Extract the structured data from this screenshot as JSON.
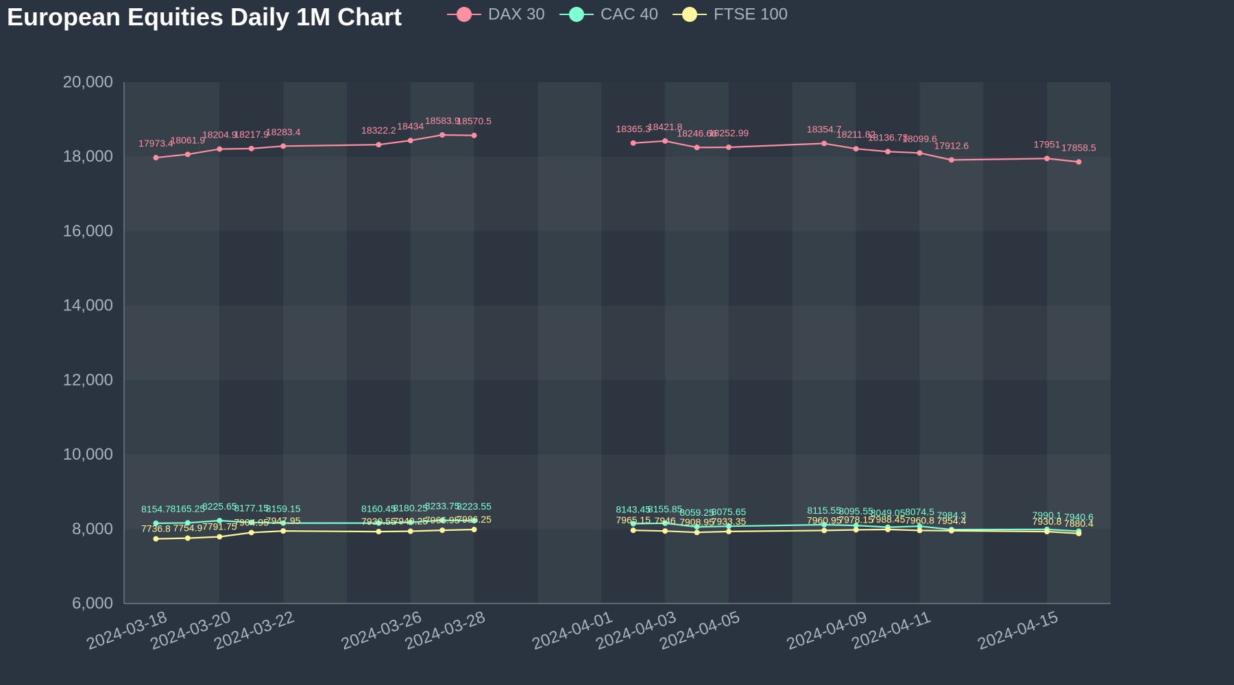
{
  "chart_data": {
    "type": "line",
    "title": "European Equities Daily 1M Chart",
    "xlabel": "",
    "ylabel": "",
    "ylim": [
      6000,
      20000
    ],
    "yticks": [
      6000,
      8000,
      10000,
      12000,
      14000,
      16000,
      18000,
      20000
    ],
    "ytick_labels": [
      "6,000",
      "8,000",
      "10,000",
      "12,000",
      "14,000",
      "16,000",
      "18,000",
      "20,000"
    ],
    "xlim": [
      "2024-03-17",
      "2024-04-17"
    ],
    "xticks": [
      "2024-03-18",
      "2024-03-20",
      "2024-03-22",
      "2024-03-26",
      "2024-03-28",
      "2024-04-01",
      "2024-04-03",
      "2024-04-05",
      "2024-04-09",
      "2024-04-11",
      "2024-04-15"
    ],
    "grid": false,
    "legend": "top",
    "background_colors": {
      "page": "#293440",
      "plot_light": "#364049",
      "plot_dark": "#2d3640"
    },
    "x": [
      "2024-03-18",
      "2024-03-19",
      "2024-03-20",
      "2024-03-21",
      "2024-03-22",
      "2024-03-25",
      "2024-03-26",
      "2024-03-27",
      "2024-03-28",
      "2024-04-02",
      "2024-04-03",
      "2024-04-04",
      "2024-04-05",
      "2024-04-08",
      "2024-04-09",
      "2024-04-10",
      "2024-04-11",
      "2024-04-12",
      "2024-04-15",
      "2024-04-16"
    ],
    "series": [
      {
        "name": "DAX 30",
        "color": "#ff8fa3",
        "values": [
          17973.4,
          18061.9,
          18204.9,
          18217.9,
          18283.4,
          18322.2,
          18434,
          18583.9,
          18570.5,
          18365.3,
          18421.8,
          18246.66,
          18252.99,
          18354.7,
          18211.82,
          18136.73,
          18099.6,
          17912.6,
          17951,
          17858.5
        ],
        "labels": [
          "17973.4",
          "18061.9",
          "18204.9",
          "18217.9",
          "18283.4",
          "18322.2",
          "18434",
          "18583.9",
          "18570.5",
          "18365.3",
          "18421.8",
          "18246.66",
          "18252.99",
          "18354.7",
          "18211.82",
          "18136.73",
          "18099.6",
          "17912.6",
          "17951",
          "17858.5"
        ]
      },
      {
        "name": "CAC 40",
        "color": "#7fffd4",
        "values": [
          8154.7,
          8165.25,
          8225.65,
          8177.15,
          8159.15,
          8160.45,
          8180.25,
          8233.75,
          8223.55,
          8143.45,
          8155.85,
          8059.25,
          8075.65,
          8115.55,
          8095.55,
          8049.05,
          8074.5,
          7984.3,
          7990.1,
          7940.6
        ],
        "labels": [
          "8154.7",
          "8165.25",
          "8225.65",
          "8177.15",
          "8159.15",
          "8160.45",
          "8180.25",
          "8233.75",
          "8223.55",
          "8143.45",
          "8155.85",
          "8059.25",
          "8075.65",
          "8115.55",
          "8095.55",
          "8049.05",
          "8074.5",
          "7984.3",
          "7990.1",
          "7940.6"
        ]
      },
      {
        "name": "FTSE 100",
        "color": "#fff59d",
        "values": [
          7736.8,
          7754.9,
          7791.75,
          7904.95,
          7947.95,
          7930.55,
          7940.25,
          7966.95,
          7986.25,
          7965.15,
          7946,
          7908.95,
          7933.35,
          7960.95,
          7978.15,
          7988.45,
          7960.8,
          7954.4,
          7930.8,
          7880.4
        ],
        "labels": [
          "7736.8",
          "7754.9",
          "7791.75",
          "7904.95",
          "7947.95",
          "7930.55",
          "7940.25",
          "7966.95",
          "7986.25",
          "7965.15",
          "7946",
          "7908.95",
          "7933.35",
          "7960.95",
          "7978.15",
          "7988.45",
          "7960.8",
          "7954.4",
          "7930.8",
          "7880.4"
        ]
      }
    ]
  }
}
